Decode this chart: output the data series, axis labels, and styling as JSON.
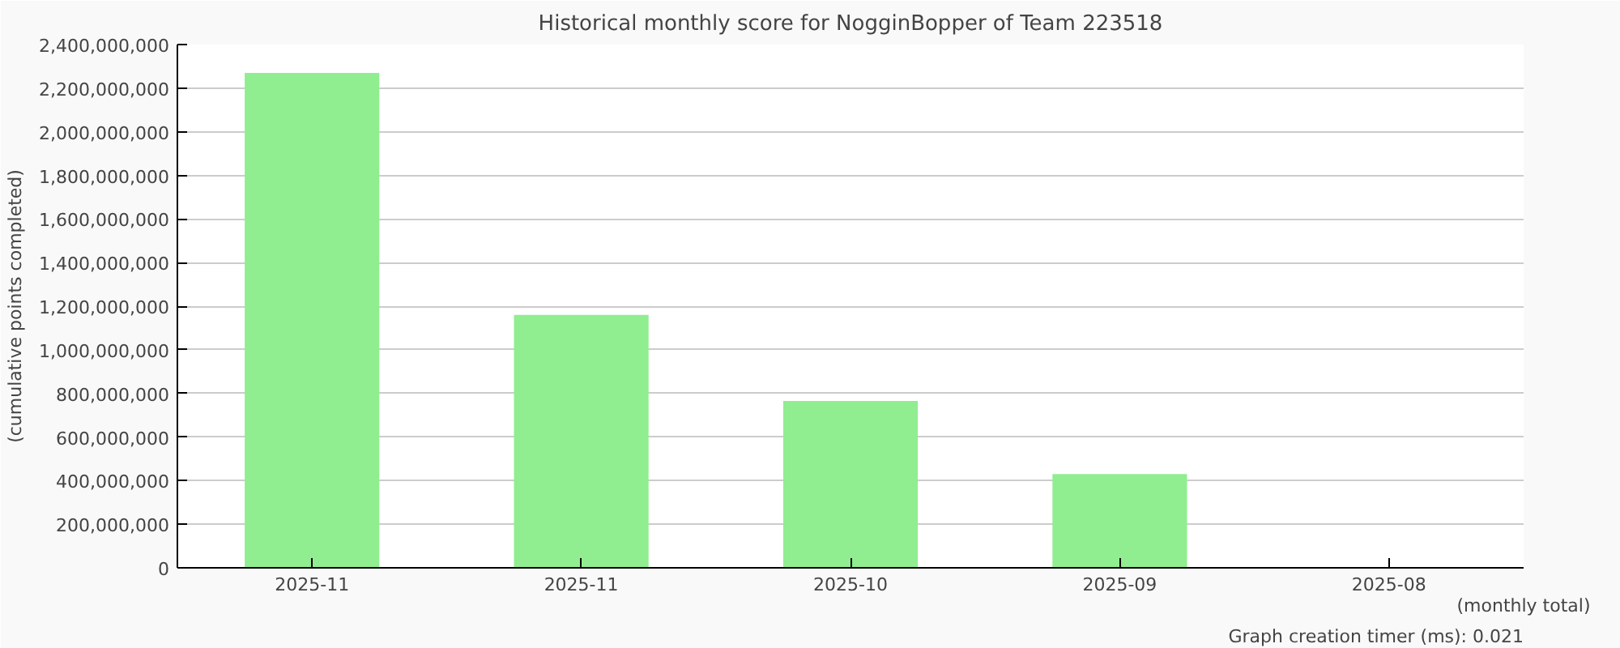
{
  "chart_data": {
    "type": "bar",
    "title": "Historical monthly score for NogginBopper of Team 223518",
    "xlabel": "(monthly total)",
    "ylabel": "(cumulative points completed)",
    "categories": [
      "2025-11",
      "2025-11",
      "2025-10",
      "2025-09",
      "2025-08"
    ],
    "values": [
      2270000000,
      1160000000,
      765000000,
      430000000,
      null
    ],
    "color": "#90ee90",
    "ylim": [
      0,
      2400000000
    ],
    "yticks": [
      {
        "value": 0,
        "label": "0"
      },
      {
        "value": 200000000,
        "label": "200,000,000"
      },
      {
        "value": 400000000,
        "label": "400,000,000"
      },
      {
        "value": 600000000,
        "label": "600,000,000"
      },
      {
        "value": 800000000,
        "label": "800,000,000"
      },
      {
        "value": 1000000000,
        "label": "1,000,000,000"
      },
      {
        "value": 1200000000,
        "label": "1,200,000,000"
      },
      {
        "value": 1400000000,
        "label": "1,400,000,000"
      },
      {
        "value": 1600000000,
        "label": "1,600,000,000"
      },
      {
        "value": 1800000000,
        "label": "1,800,000,000"
      },
      {
        "value": 2000000000,
        "label": "2,000,000,000"
      },
      {
        "value": 2200000000,
        "label": "2,200,000,000"
      },
      {
        "value": 2400000000,
        "label": "2,400,000,000"
      }
    ],
    "grid": "y",
    "annotations": [
      "Graph creation timer (ms): 0.021"
    ]
  }
}
